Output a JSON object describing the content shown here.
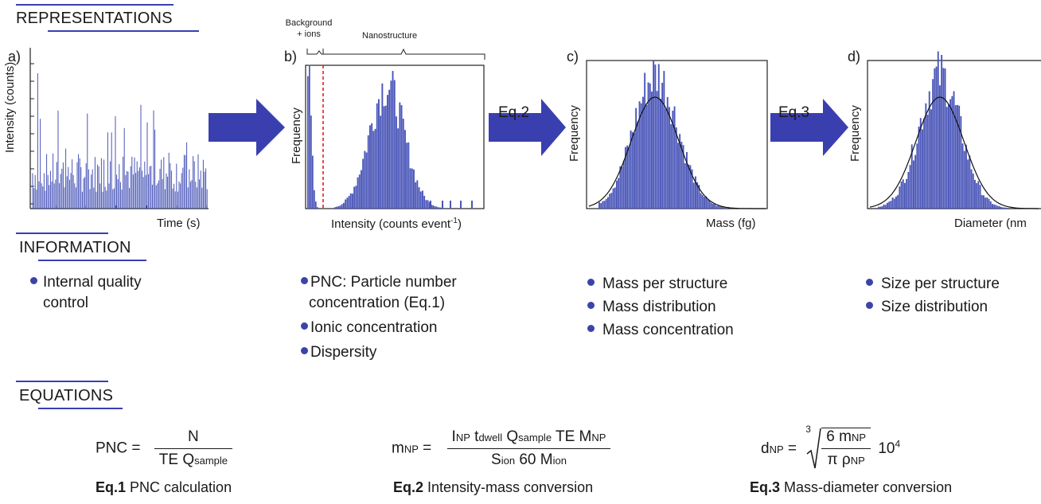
{
  "sections": {
    "representations": "REPRESENTATIONS",
    "information": "INFORMATION",
    "equations": "EQUATIONS"
  },
  "panels": {
    "a": {
      "letter": "a)",
      "ylabel": "Intensity (counts)",
      "xlabel": "Time (s)"
    },
    "b": {
      "letter": "b)",
      "ylabel": "Frequency",
      "xlabel": "Intensity (counts event",
      "xlabel_sup": "-1",
      "xlabel_close": ")",
      "bracket_left_line1": "Background",
      "bracket_left_line2": "+ ions",
      "bracket_right": "Nanostructure"
    },
    "c": {
      "letter": "c)",
      "ylabel": "Frequency",
      "xlabel": "Mass (fg)"
    },
    "d": {
      "letter": "d)",
      "ylabel": "Frequency",
      "xlabel": "Diameter (nm"
    }
  },
  "arrows": {
    "eq2": "Eq.2",
    "eq3": "Eq.3"
  },
  "info": {
    "a": [
      "Internal quality",
      "control"
    ],
    "b": [
      "PNC: Particle number",
      "concentration (Eq.1)",
      "Ionic concentration",
      "Dispersity"
    ],
    "c": [
      "Mass per structure",
      "Mass distribution",
      "Mass concentration"
    ],
    "d": [
      "Size per structure",
      "Size distribution"
    ]
  },
  "equations": {
    "eq1": {
      "lhs": "PNC =",
      "num": "N",
      "den_a": "TE Q",
      "den_sub": "sample",
      "label_bold": "Eq.1",
      "label_rest": " PNC calculation"
    },
    "eq2": {
      "lhs_m": "m",
      "lhs_sub": "NP",
      "lhs_eq": " =",
      "num": [
        "I",
        "NP",
        " t",
        "dwell",
        " Q",
        "sample",
        " TE M",
        "NP"
      ],
      "den": [
        "S",
        "ion",
        " 60 M",
        "ion"
      ],
      "label_bold": "Eq.2",
      "label_rest": " Intensity-mass conversion"
    },
    "eq3": {
      "lhs_d": "d",
      "lhs_sub": "NP",
      "lhs_eq": " =",
      "root_index": "3",
      "num_a": "6 m",
      "num_sub": "NP",
      "den_a": "π ρ",
      "den_sub": "NP",
      "factor": "10",
      "factor_sup": "4",
      "label_bold": "Eq.3",
      "label_rest": " Mass-diameter conversion"
    }
  },
  "colors": {
    "bar": "#4a56b8",
    "accent": "#3a3fb0",
    "threshold": "#e02020",
    "fit": "#111111"
  }
}
